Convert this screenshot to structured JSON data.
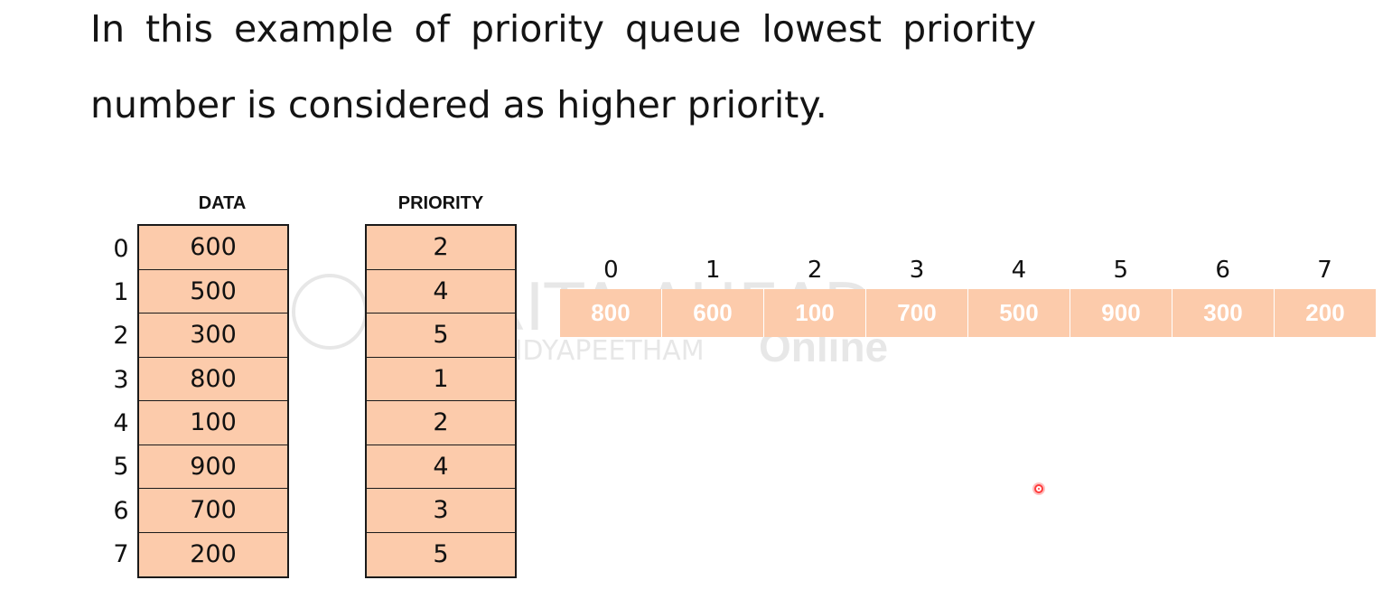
{
  "text": {
    "line1": "In this example of priority queue lowest priority",
    "line2": "number is considered as higher priority."
  },
  "table": {
    "data_header": "DATA",
    "priority_header": "PRIORITY",
    "indices": [
      "0",
      "1",
      "2",
      "3",
      "4",
      "5",
      "6",
      "7"
    ],
    "data": [
      "600",
      "500",
      "300",
      "800",
      "100",
      "900",
      "700",
      "200"
    ],
    "priority": [
      "2",
      "4",
      "5",
      "1",
      "2",
      "4",
      "3",
      "5"
    ]
  },
  "queue": {
    "indices": [
      "0",
      "1",
      "2",
      "3",
      "4",
      "5",
      "6",
      "7"
    ],
    "values": [
      "800",
      "600",
      "100",
      "700",
      "500",
      "900",
      "300",
      "200"
    ]
  },
  "watermark": {
    "brand": "AMRITA AHEAD",
    "sub": "VISHWA VIDYAPEETHAM",
    "tag": "Online"
  },
  "colors": {
    "cell_fill": "#fccbab",
    "queue_text": "#ffffff",
    "pointer": "#ff3b3b"
  }
}
